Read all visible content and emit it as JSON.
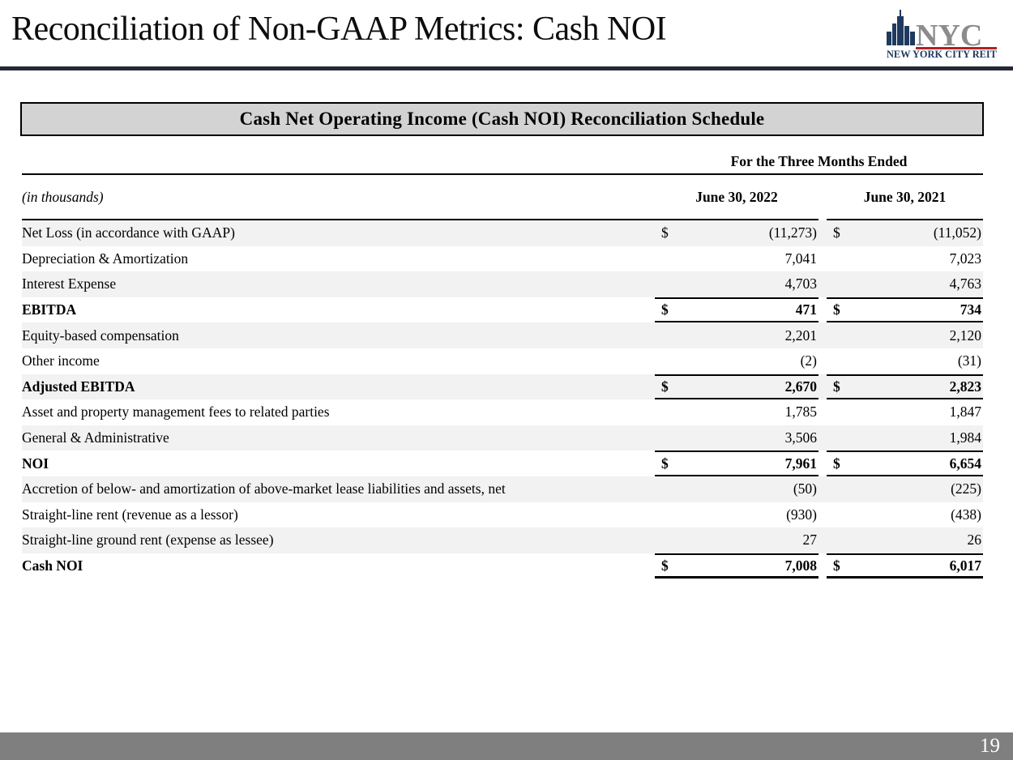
{
  "slide": {
    "title": "Reconciliation of Non-GAAP Metrics: Cash NOI",
    "page_number": "19"
  },
  "logo": {
    "acronym": "NYC",
    "subtitle": "NEW YORK CITY REIT",
    "navy": "#1f3a5f",
    "gray": "#8c8c8c",
    "red": "#b22222"
  },
  "table": {
    "banner": "Cash Net Operating Income (Cash NOI) Reconciliation Schedule",
    "period_header": "For the Three Months Ended",
    "units_note": "(in thousands)",
    "columns": [
      "June 30, 2022",
      "June 30, 2021"
    ],
    "dollar_sign": "$",
    "rows": [
      {
        "label": "Net Loss (in accordance with GAAP)",
        "dollar": true,
        "v1": "(11,273)",
        "v2": "(11,052)",
        "bold": false,
        "total": false
      },
      {
        "label": "Depreciation & Amortization",
        "dollar": false,
        "v1": "7,041",
        "v2": "7,023",
        "bold": false,
        "total": false
      },
      {
        "label": "Interest Expense",
        "dollar": false,
        "v1": "4,703",
        "v2": "4,763",
        "bold": false,
        "total": false
      },
      {
        "label": "EBITDA",
        "dollar": true,
        "v1": "471",
        "v2": "734",
        "bold": true,
        "total": true
      },
      {
        "label": "Equity-based compensation",
        "dollar": false,
        "v1": "2,201",
        "v2": "2,120",
        "bold": false,
        "total": false
      },
      {
        "label": "Other income",
        "dollar": false,
        "v1": "(2)",
        "v2": "(31)",
        "bold": false,
        "total": false
      },
      {
        "label": "Adjusted EBITDA",
        "dollar": true,
        "v1": "2,670",
        "v2": "2,823",
        "bold": true,
        "total": true
      },
      {
        "label": "Asset and property management fees to related parties",
        "dollar": false,
        "v1": "1,785",
        "v2": "1,847",
        "bold": false,
        "total": false
      },
      {
        "label": "General & Administrative",
        "dollar": false,
        "v1": "3,506",
        "v2": "1,984",
        "bold": false,
        "total": false
      },
      {
        "label": "NOI",
        "dollar": true,
        "v1": "7,961",
        "v2": "6,654",
        "bold": true,
        "total": true
      },
      {
        "label": "Accretion of below- and amortization of above-market lease liabilities and assets, net",
        "dollar": false,
        "v1": "(50)",
        "v2": "(225)",
        "bold": false,
        "total": false
      },
      {
        "label": "Straight-line rent (revenue as a lessor)",
        "dollar": false,
        "v1": "(930)",
        "v2": "(438)",
        "bold": false,
        "total": false
      },
      {
        "label": "Straight-line ground rent (expense as lessee)",
        "dollar": false,
        "v1": "27",
        "v2": "26",
        "bold": false,
        "total": false
      },
      {
        "label": "Cash NOI",
        "dollar": true,
        "v1": "7,008",
        "v2": "6,017",
        "bold": true,
        "total": true
      }
    ],
    "colors": {
      "row_shade": "#f2f2f2",
      "banner_bg": "#d3d3d3",
      "header_divider": "#242a35",
      "footer_bg": "#7f7f7f"
    }
  }
}
